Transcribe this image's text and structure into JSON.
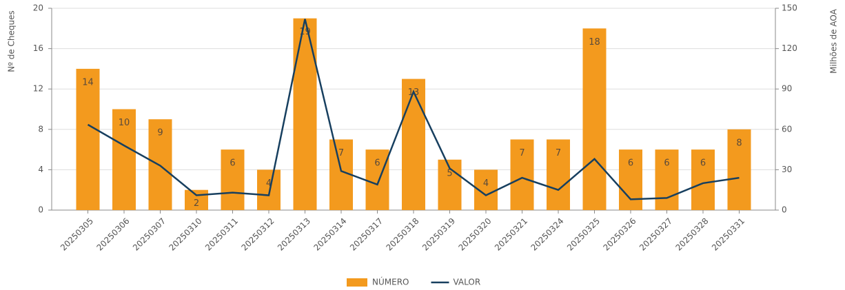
{
  "chart_data": {
    "type": "bar",
    "y_label": "Nº  de Cheques",
    "y2_label": "Milhões de AOA",
    "categories": [
      "20250305",
      "20250306",
      "20250307",
      "20250310",
      "20250311",
      "20250312",
      "20250313",
      "20250314",
      "20250317",
      "20250318",
      "20250319",
      "20250320",
      "20250321",
      "20250324",
      "20250325",
      "20250326",
      "20250327",
      "20250328",
      "20250331"
    ],
    "series": [
      {
        "name": "NÚMERO",
        "type": "bar",
        "color": "#f39a1e",
        "data_labels": true,
        "values": [
          14,
          10,
          9,
          2,
          6,
          4,
          19,
          7,
          6,
          13,
          5,
          4,
          7,
          7,
          18,
          6,
          6,
          6,
          8
        ]
      },
      {
        "name": "VALOR",
        "type": "line",
        "axis": "y2",
        "color": "#173f5f",
        "values": [
          63.5,
          48,
          33,
          11,
          13,
          11,
          142,
          29,
          19,
          88,
          31,
          11,
          24,
          15,
          38,
          8,
          9,
          20,
          24
        ]
      }
    ],
    "ylim": [
      0,
      20
    ],
    "yticks": [
      0,
      4,
      8,
      12,
      16,
      20
    ],
    "y2lim": [
      0,
      150
    ],
    "y2ticks": [
      0,
      30,
      60,
      90,
      120,
      150
    ],
    "grid": true,
    "legend": "bottom"
  }
}
